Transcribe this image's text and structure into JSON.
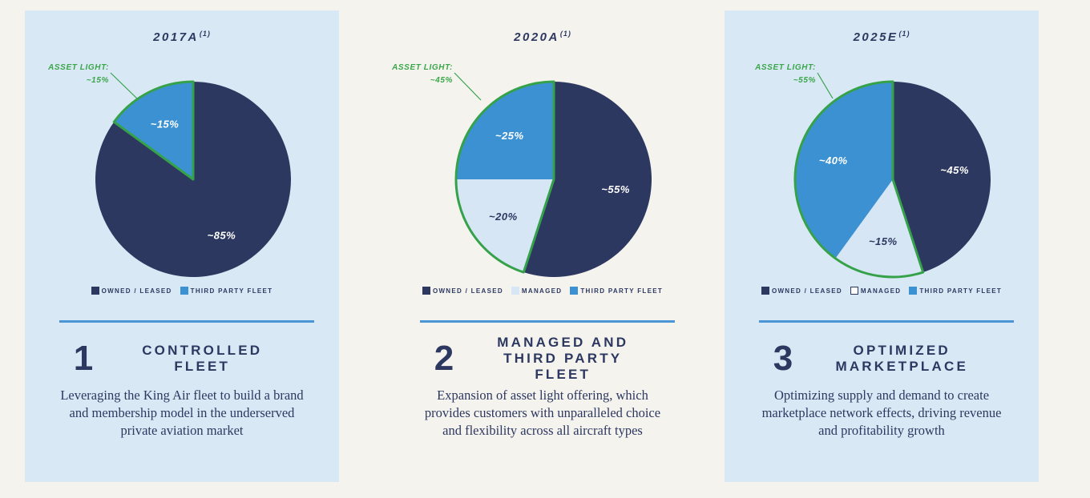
{
  "colors": {
    "owned_leased": "#2d3861",
    "managed": "#d6e6f5",
    "third_party_fleet": "#3c91d3",
    "asset_light_outline": "#35a24a",
    "divider": "#4a95d6",
    "panel_background": "#d9e8f5",
    "page_background": "#f4f3ee"
  },
  "chart_data": [
    {
      "type": "pie",
      "title": "2017A",
      "footnote": "(1)",
      "slices": [
        {
          "name": "OWNED / LEASED",
          "value": 85,
          "label": "~85%",
          "color": "#2d3861"
        },
        {
          "name": "THIRD PARTY FLEET",
          "value": 15,
          "label": "~15%",
          "color": "#3c91d3"
        }
      ],
      "callout": {
        "line1": "ASSET LIGHT:",
        "line2": "~15%"
      },
      "legend": [
        "OWNED / LEASED",
        "THIRD PARTY FLEET"
      ]
    },
    {
      "type": "pie",
      "title": "2020A",
      "footnote": "(1)",
      "slices": [
        {
          "name": "OWNED / LEASED",
          "value": 55,
          "label": "~55%",
          "color": "#2d3861"
        },
        {
          "name": "MANAGED",
          "value": 20,
          "label": "~20%",
          "color": "#d6e6f5"
        },
        {
          "name": "THIRD PARTY FLEET",
          "value": 25,
          "label": "~25%",
          "color": "#3c91d3"
        }
      ],
      "callout": {
        "line1": "ASSET LIGHT:",
        "line2": "~45%"
      },
      "legend": [
        "OWNED / LEASED",
        "MANAGED",
        "THIRD PARTY FLEET"
      ]
    },
    {
      "type": "pie",
      "title": "2025E",
      "footnote": "(1)",
      "slices": [
        {
          "name": "OWNED / LEASED",
          "value": 45,
          "label": "~45%",
          "color": "#2d3861"
        },
        {
          "name": "MANAGED",
          "value": 15,
          "label": "~15%",
          "color": "#d6e6f5"
        },
        {
          "name": "THIRD PARTY FLEET",
          "value": 40,
          "label": "~40%",
          "color": "#3c91d3"
        }
      ],
      "callout": {
        "line1": "ASSET LIGHT:",
        "line2": "~55%"
      },
      "legend": [
        "OWNED / LEASED",
        "MANAGED",
        "THIRD PARTY FLEET"
      ]
    }
  ],
  "panels": [
    {
      "number": "1",
      "title": "CONTROLLED FLEET",
      "description": "Leveraging the King Air fleet to build a brand and membership model in the underserved private aviation market"
    },
    {
      "number": "2",
      "title": "MANAGED AND THIRD PARTY FLEET",
      "description": "Expansion of asset light offering, which provides customers with unparalleled choice and flexibility across all aircraft types"
    },
    {
      "number": "3",
      "title": "OPTIMIZED MARKETPLACE",
      "description": "Optimizing supply and demand to create marketplace network effects, driving revenue and profitability growth"
    }
  ]
}
